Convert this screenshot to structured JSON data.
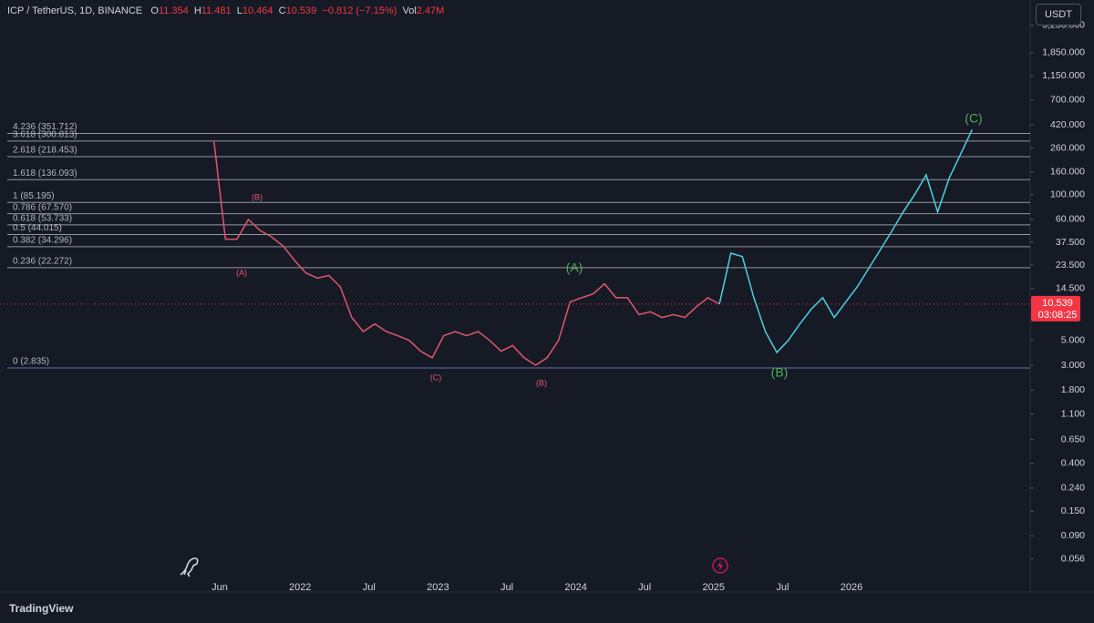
{
  "header": {
    "symbol": "ICP / TetherUS, 1D, BINANCE",
    "open_label": "O",
    "open": 11.354,
    "high_label": "H",
    "high": 11.481,
    "low_label": "L",
    "low": 10.464,
    "close_label": "C",
    "close": 10.539,
    "change": "−0.812 (−7.15%)",
    "volume_label": "Vol",
    "volume": "2.47M"
  },
  "currency_button": "USDT",
  "brand": "TradingView",
  "chart_data": {
    "type": "line",
    "log": true,
    "categories": [
      null,
      "Jun",
      null,
      null,
      null,
      null,
      null,
      null,
      "2022",
      null,
      null,
      null,
      null,
      null,
      "Jul",
      null,
      null,
      null,
      null,
      null,
      "2023",
      null,
      null,
      null,
      null,
      null,
      "Jul",
      null,
      null,
      null,
      null,
      null,
      "2024",
      null,
      null,
      null,
      null,
      null,
      "Jul",
      null,
      null,
      null,
      null,
      null,
      "2025",
      null,
      null,
      null,
      null,
      null,
      "Jul",
      null,
      null,
      null,
      null,
      null,
      "2026",
      null,
      null,
      null,
      null,
      null,
      null,
      null,
      null,
      null,
      null,
      null
    ],
    "series": [
      {
        "color": "#e0566f",
        "values": [
          300,
          40,
          40,
          60,
          48,
          42,
          35,
          26,
          20,
          18,
          19,
          15,
          8,
          6,
          7,
          6,
          5.5,
          5,
          4,
          3.5,
          5.5,
          6,
          5.5,
          6,
          5,
          4,
          4.5,
          3.5,
          3,
          3.5,
          5,
          11,
          12,
          13,
          16,
          12,
          12,
          8.5,
          9,
          8,
          8.5,
          8,
          10,
          12,
          10.539,
          null,
          null,
          null,
          null,
          null,
          null,
          null,
          null,
          null,
          null,
          null,
          null,
          null,
          null,
          null,
          null,
          null,
          null,
          null,
          null,
          null,
          null,
          null
        ]
      },
      {
        "color": "#4dd0e1",
        "values": [
          null,
          null,
          null,
          null,
          null,
          null,
          null,
          null,
          null,
          null,
          null,
          null,
          null,
          null,
          null,
          null,
          null,
          null,
          null,
          null,
          null,
          null,
          null,
          null,
          null,
          null,
          null,
          null,
          null,
          null,
          null,
          null,
          null,
          null,
          null,
          null,
          null,
          null,
          null,
          null,
          null,
          null,
          null,
          null,
          10.539,
          30,
          28,
          12,
          6,
          3.9,
          5,
          7,
          9.5,
          12,
          8,
          11,
          15,
          22,
          32,
          47,
          70,
          100,
          150,
          70,
          140,
          230,
          380,
          null
        ]
      }
    ],
    "ylim": [
      0.0428,
      3420
    ],
    "yticks": [
      {
        "value": 3250,
        "label": "3,250.000"
      },
      {
        "value": 1850,
        "label": "1,850.000"
      },
      {
        "value": 1150,
        "label": "1,150.000"
      },
      {
        "value": 700,
        "label": "700.000"
      },
      {
        "value": 420,
        "label": "420.000"
      },
      {
        "value": 260,
        "label": "260.000"
      },
      {
        "value": 160,
        "label": "160.000"
      },
      {
        "value": 100,
        "label": "100.000"
      },
      {
        "value": 60,
        "label": "60.000"
      },
      {
        "value": 37.5,
        "label": "37.500"
      },
      {
        "value": 23.5,
        "label": "23.500"
      },
      {
        "value": 14.5,
        "label": "14.500"
      },
      {
        "value": 5,
        "label": "5.000"
      },
      {
        "value": 3,
        "label": "3.000"
      },
      {
        "value": 1.8,
        "label": "1.800"
      },
      {
        "value": 1.1,
        "label": "1.100"
      },
      {
        "value": 0.65,
        "label": "0.650"
      },
      {
        "value": 0.4,
        "label": "0.400"
      },
      {
        "value": 0.24,
        "label": "0.240"
      },
      {
        "value": 0.15,
        "label": "0.150"
      },
      {
        "value": 0.09,
        "label": "0.090"
      },
      {
        "value": 0.056,
        "label": "0.056"
      }
    ],
    "fib_levels": [
      {
        "label": "4.236 (351.712)",
        "value": 351.712
      },
      {
        "label": "3.618 (300.813)",
        "value": 300.813
      },
      {
        "label": "2.618 (218.453)",
        "value": 218.453
      },
      {
        "label": "1.618 (136.093)",
        "value": 136.093
      },
      {
        "label": "1 (85.195)",
        "value": 85.195
      },
      {
        "label": "0.786 (67.570)",
        "value": 67.57
      },
      {
        "label": "0.618 (53.733)",
        "value": 53.733
      },
      {
        "label": "0.5 (44.015)",
        "value": 44.015
      },
      {
        "label": "0.382 (34.296)",
        "value": 34.296
      },
      {
        "label": "0.236 (22.272)",
        "value": 22.272
      },
      {
        "label": "0 (2.835)",
        "value": 2.835
      }
    ],
    "price_label": {
      "value": 10.539,
      "countdown": "03:08:25"
    },
    "annotations": [
      "(A)",
      "(B)",
      "(C)",
      "(A)",
      "(B)",
      "(C)",
      "(B)"
    ]
  }
}
